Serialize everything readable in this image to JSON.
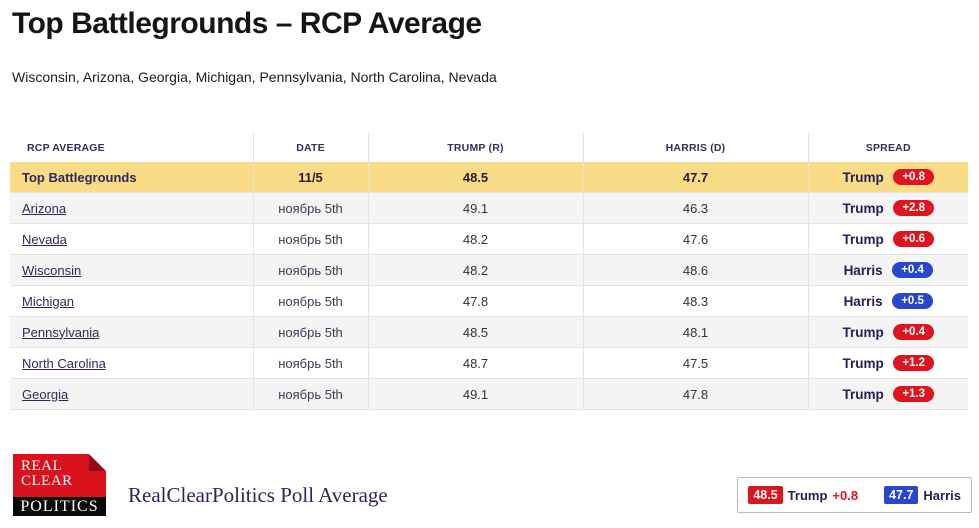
{
  "page": {
    "title": "Top Battlegrounds – RCP Average",
    "subtitle": "Wisconsin, Arizona, Georgia, Michigan, Pennsylvania, North Carolina, Nevada"
  },
  "table": {
    "columns": [
      "RCP AVERAGE",
      "DATE",
      "TRUMP (R)",
      "HARRIS (D)",
      "SPREAD"
    ],
    "rows": [
      {
        "name": "Top Battlegrounds",
        "date": "11/5",
        "trump": "48.5",
        "harris": "47.7",
        "leader": "Trump",
        "margin": "+0.8",
        "party": "rep",
        "highlight": true,
        "link": false
      },
      {
        "name": "Arizona",
        "date": "ноябрь 5th",
        "trump": "49.1",
        "harris": "46.3",
        "leader": "Trump",
        "margin": "+2.8",
        "party": "rep",
        "highlight": false,
        "link": true
      },
      {
        "name": "Nevada",
        "date": "ноябрь 5th",
        "trump": "48.2",
        "harris": "47.6",
        "leader": "Trump",
        "margin": "+0.6",
        "party": "rep",
        "highlight": false,
        "link": true
      },
      {
        "name": "Wisconsin",
        "date": "ноябрь 5th",
        "trump": "48.2",
        "harris": "48.6",
        "leader": "Harris",
        "margin": "+0.4",
        "party": "dem",
        "highlight": false,
        "link": true
      },
      {
        "name": "Michigan",
        "date": "ноябрь 5th",
        "trump": "47.8",
        "harris": "48.3",
        "leader": "Harris",
        "margin": "+0.5",
        "party": "dem",
        "highlight": false,
        "link": true
      },
      {
        "name": "Pennsylvania",
        "date": "ноябрь 5th",
        "trump": "48.5",
        "harris": "48.1",
        "leader": "Trump",
        "margin": "+0.4",
        "party": "rep",
        "highlight": false,
        "link": true
      },
      {
        "name": "North Carolina",
        "date": "ноябрь 5th",
        "trump": "48.7",
        "harris": "47.5",
        "leader": "Trump",
        "margin": "+1.2",
        "party": "rep",
        "highlight": false,
        "link": true
      },
      {
        "name": "Georgia",
        "date": "ноябрь 5th",
        "trump": "49.1",
        "harris": "47.8",
        "leader": "Trump",
        "margin": "+1.3",
        "party": "rep",
        "highlight": false,
        "link": true
      }
    ]
  },
  "footer": {
    "logo": {
      "line1": "REAL",
      "line2": "CLEAR",
      "line3": "POLITICS"
    },
    "caption": "RealClearPolitics Poll Average",
    "legend": {
      "trump_value": "48.5",
      "trump_label": "Trump",
      "trump_margin": "+0.8",
      "harris_value": "47.7",
      "harris_label": "Harris"
    }
  },
  "colors": {
    "highlight_yellow": "#FADC86",
    "trump_red": "#DE141E",
    "harris_blue": "#2946CE",
    "navy_text": "#232058"
  }
}
